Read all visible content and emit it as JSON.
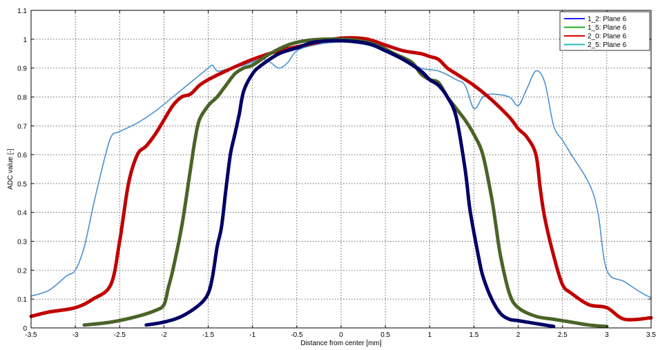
{
  "chart_data": {
    "type": "line",
    "xlabel": "Distance from center [mm]",
    "ylabel": "ADC value [-]",
    "xlim": [
      -3.5,
      3.5
    ],
    "ylim": [
      0,
      1.1
    ],
    "xticks": [
      "-3.5",
      "-3",
      "-2.5",
      "-2",
      "-1.5",
      "-1",
      "-0.5",
      "0",
      "0.5",
      "1",
      "1.5",
      "2",
      "2.5",
      "3",
      "3.5"
    ],
    "yticks": [
      "0",
      "0.1",
      "0.2",
      "0.3",
      "0.4",
      "0.5",
      "0.6",
      "0.7",
      "0.8",
      "0.9",
      "1",
      "1.1"
    ],
    "grid": true,
    "legend_position": "top-right",
    "series": [
      {
        "name": "1_2: Plane 6",
        "legend_color": "#2020ff",
        "color": "#000066",
        "x": [
          -2.2,
          -2.0,
          -1.8,
          -1.6,
          -1.5,
          -1.45,
          -1.4,
          -1.35,
          -1.3,
          -1.25,
          -1.2,
          -1.15,
          -1.1,
          -1.0,
          -0.9,
          -0.7,
          -0.5,
          -0.3,
          0.0,
          0.3,
          0.5,
          0.7,
          0.9,
          1.0,
          1.1,
          1.2,
          1.3,
          1.4,
          1.45,
          1.5,
          1.55,
          1.6,
          1.7,
          1.8,
          1.9,
          2.0,
          2.2,
          2.4
        ],
        "y": [
          0.01,
          0.02,
          0.04,
          0.08,
          0.12,
          0.18,
          0.28,
          0.35,
          0.48,
          0.6,
          0.67,
          0.74,
          0.82,
          0.88,
          0.91,
          0.95,
          0.97,
          0.99,
          0.995,
          0.985,
          0.96,
          0.93,
          0.89,
          0.86,
          0.84,
          0.8,
          0.73,
          0.55,
          0.42,
          0.33,
          0.25,
          0.18,
          0.1,
          0.05,
          0.03,
          0.025,
          0.015,
          0.005
        ]
      },
      {
        "name": "1_5: Plane 6",
        "legend_color": "#22aa22",
        "color": "#4a6428",
        "x": [
          -2.9,
          -2.6,
          -2.3,
          -2.1,
          -2.0,
          -1.95,
          -1.9,
          -1.8,
          -1.7,
          -1.65,
          -1.6,
          -1.5,
          -1.4,
          -1.3,
          -1.2,
          -1.1,
          -1.0,
          -0.8,
          -0.6,
          -0.4,
          -0.2,
          0.0,
          0.2,
          0.4,
          0.6,
          0.8,
          0.9,
          1.0,
          1.1,
          1.2,
          1.3,
          1.4,
          1.5,
          1.6,
          1.7,
          1.75,
          1.8,
          1.9,
          2.0,
          2.2,
          2.4,
          2.6,
          2.8,
          3.0
        ],
        "y": [
          0.01,
          0.02,
          0.04,
          0.06,
          0.08,
          0.14,
          0.2,
          0.35,
          0.55,
          0.65,
          0.72,
          0.77,
          0.8,
          0.84,
          0.88,
          0.9,
          0.91,
          0.95,
          0.98,
          0.995,
          1.0,
          1.0,
          0.995,
          0.98,
          0.95,
          0.92,
          0.88,
          0.86,
          0.85,
          0.8,
          0.76,
          0.72,
          0.67,
          0.6,
          0.45,
          0.35,
          0.25,
          0.12,
          0.07,
          0.04,
          0.03,
          0.02,
          0.01,
          0.005
        ]
      },
      {
        "name": "2_0: Plane 6",
        "legend_color": "#dd0000",
        "color": "#c00000",
        "x": [
          -3.5,
          -3.3,
          -3.0,
          -2.8,
          -2.6,
          -2.5,
          -2.4,
          -2.3,
          -2.2,
          -2.1,
          -2.0,
          -1.9,
          -1.8,
          -1.7,
          -1.6,
          -1.5,
          -1.3,
          -1.0,
          -0.7,
          -0.4,
          -0.1,
          0.1,
          0.3,
          0.5,
          0.7,
          0.9,
          1.0,
          1.1,
          1.2,
          1.3,
          1.5,
          1.7,
          1.9,
          2.0,
          2.1,
          2.2,
          2.25,
          2.3,
          2.4,
          2.5,
          2.6,
          2.8,
          3.0,
          3.2,
          3.5
        ],
        "y": [
          0.04,
          0.055,
          0.07,
          0.1,
          0.15,
          0.3,
          0.5,
          0.6,
          0.63,
          0.67,
          0.72,
          0.77,
          0.8,
          0.81,
          0.84,
          0.86,
          0.89,
          0.93,
          0.96,
          0.98,
          1.0,
          1.005,
          1.0,
          0.98,
          0.96,
          0.95,
          0.94,
          0.93,
          0.9,
          0.88,
          0.84,
          0.79,
          0.73,
          0.69,
          0.66,
          0.6,
          0.48,
          0.38,
          0.25,
          0.15,
          0.12,
          0.08,
          0.07,
          0.03,
          0.035
        ]
      },
      {
        "name": "2_5: Plane 6",
        "legend_color": "#2ab5b5",
        "color": "#4a90d0",
        "x": [
          -3.5,
          -3.3,
          -3.1,
          -3.0,
          -2.9,
          -2.8,
          -2.7,
          -2.6,
          -2.5,
          -2.3,
          -2.1,
          -1.9,
          -1.7,
          -1.5,
          -1.45,
          -1.4,
          -1.3,
          -1.1,
          -0.9,
          -0.8,
          -0.7,
          -0.6,
          -0.5,
          -0.3,
          0.0,
          0.3,
          0.5,
          0.7,
          0.9,
          1.1,
          1.3,
          1.4,
          1.5,
          1.6,
          1.7,
          1.9,
          2.0,
          2.1,
          2.2,
          2.3,
          2.4,
          2.5,
          2.6,
          2.8,
          2.9,
          3.0,
          3.2,
          3.4,
          3.5
        ],
        "y": [
          0.11,
          0.13,
          0.18,
          0.2,
          0.28,
          0.42,
          0.55,
          0.66,
          0.68,
          0.71,
          0.75,
          0.8,
          0.85,
          0.9,
          0.91,
          0.89,
          0.895,
          0.91,
          0.93,
          0.92,
          0.9,
          0.92,
          0.96,
          0.98,
          0.99,
          0.98,
          0.96,
          0.94,
          0.9,
          0.89,
          0.86,
          0.84,
          0.76,
          0.8,
          0.81,
          0.8,
          0.77,
          0.83,
          0.89,
          0.85,
          0.7,
          0.65,
          0.6,
          0.5,
          0.4,
          0.2,
          0.16,
          0.12,
          0.105
        ]
      }
    ]
  }
}
